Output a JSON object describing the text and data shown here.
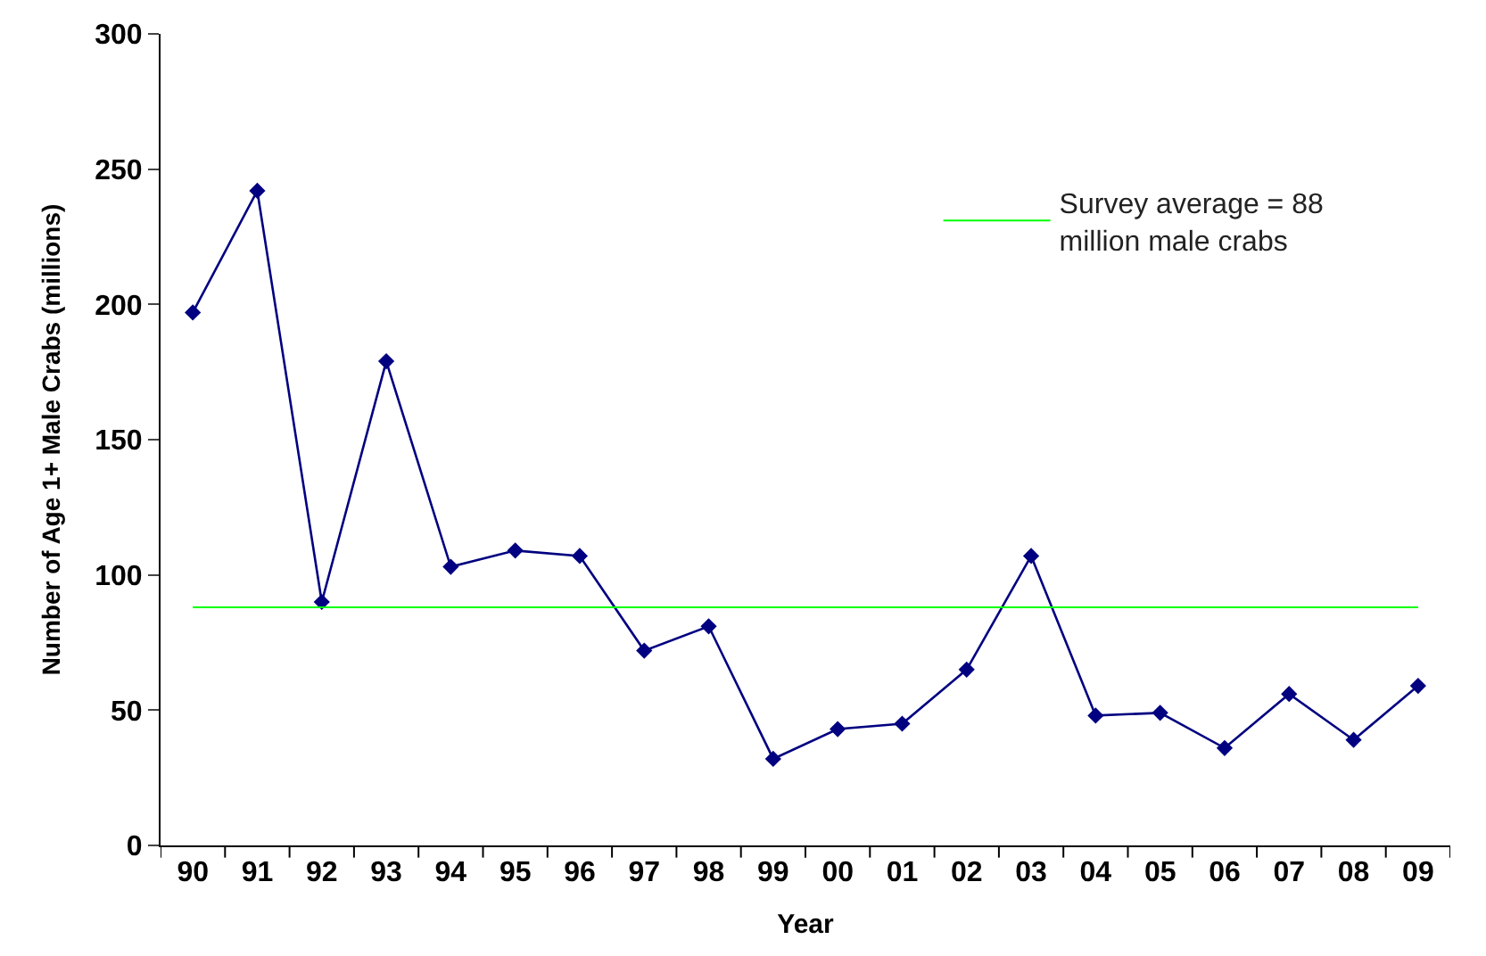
{
  "chart_data": {
    "type": "line",
    "xlabel": "Year",
    "ylabel": "Number of Age 1+ Male Crabs (millions)",
    "categories": [
      "90",
      "91",
      "92",
      "93",
      "94",
      "95",
      "96",
      "97",
      "98",
      "99",
      "00",
      "01",
      "02",
      "03",
      "04",
      "05",
      "06",
      "07",
      "08",
      "09"
    ],
    "series": [
      {
        "color": "#000080",
        "values": [
          197,
          242,
          90,
          179,
          103,
          109,
          107,
          72,
          81,
          32,
          43,
          45,
          65,
          107,
          48,
          49,
          36,
          56,
          39,
          59
        ]
      }
    ],
    "ylim": [
      0,
      300
    ],
    "yticks": [
      0,
      50,
      100,
      150,
      200,
      250,
      300
    ],
    "ref_lines": [
      {
        "axis": "y",
        "value": 88,
        "label": "Survey average = 88\nmillion male crabs",
        "color": "#00ff00"
      }
    ],
    "marker": "diamond",
    "line_style": "solid",
    "grid": false,
    "legend": "top right"
  }
}
